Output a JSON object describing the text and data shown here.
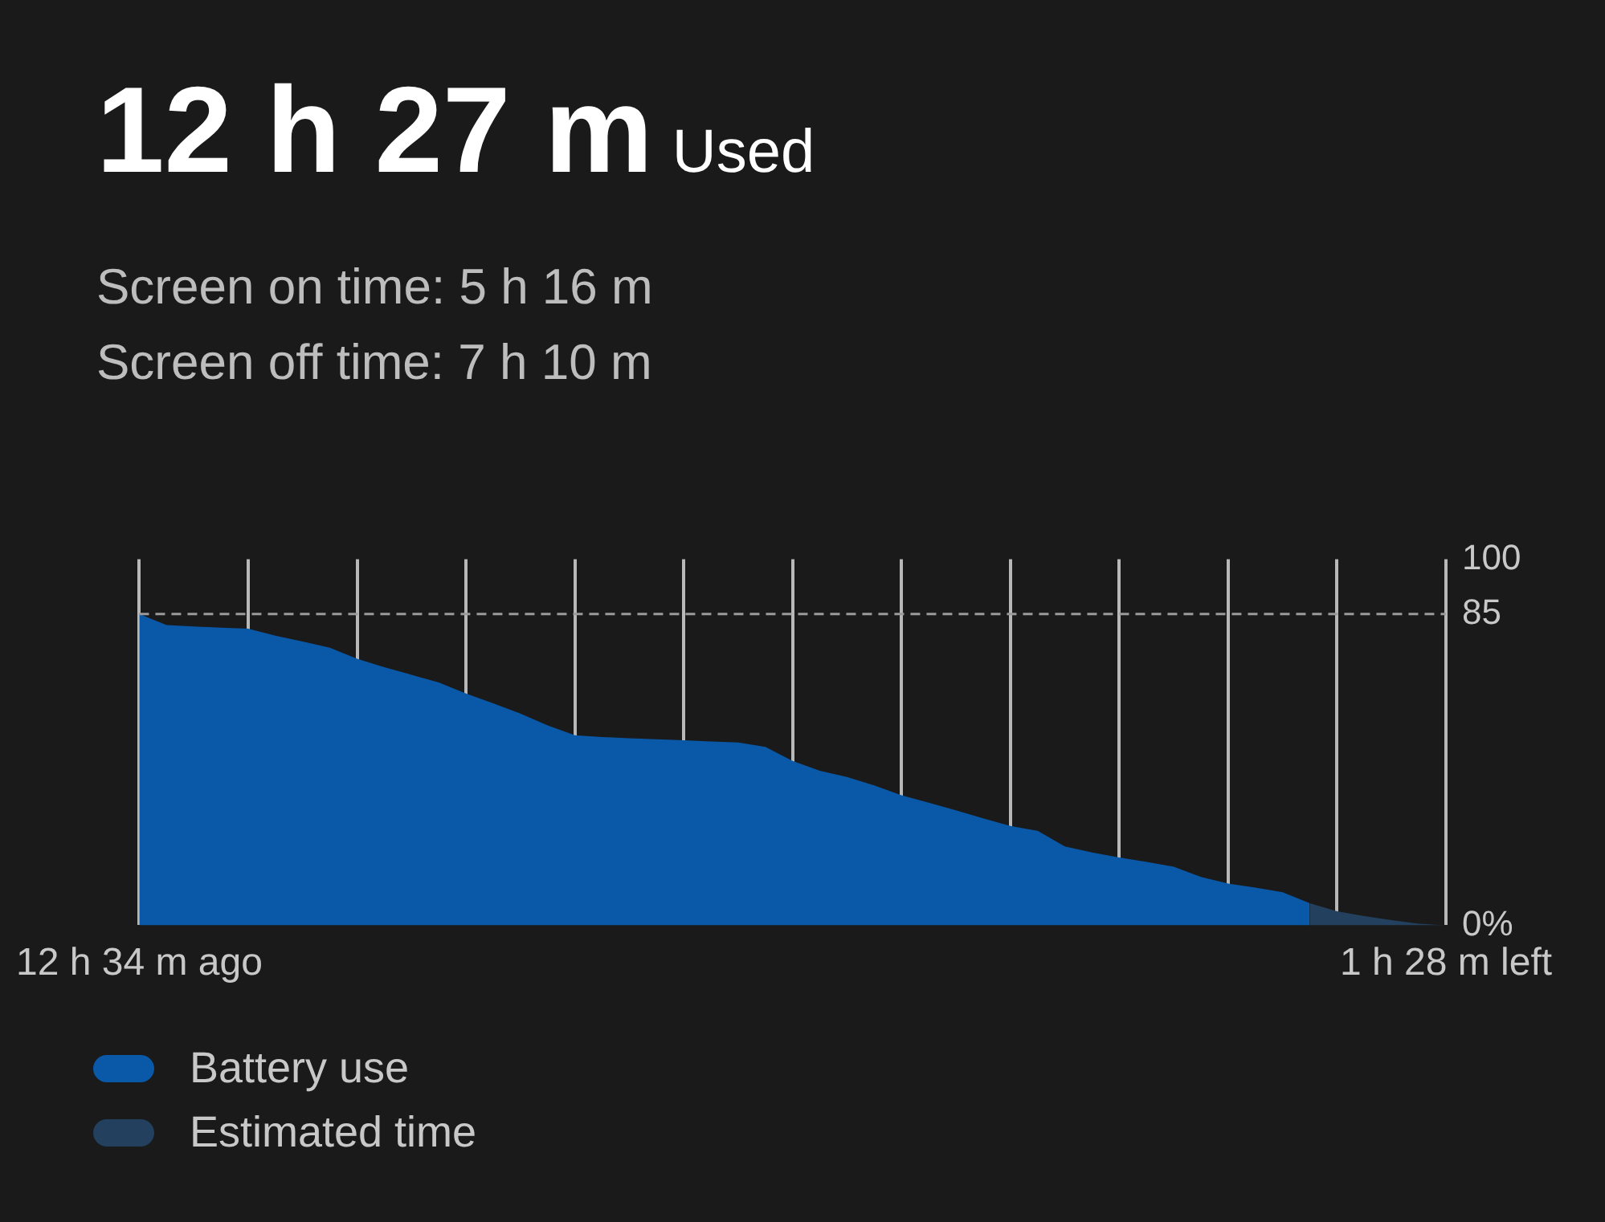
{
  "chart_data": {
    "type": "area",
    "title": "12 h 27 m",
    "subtitle": "Used",
    "annotations": [
      "Screen on time: 5 h 16 m",
      "Screen off time: 7 h 10 m"
    ],
    "categories": [
      "12 h 34 m ago",
      null,
      null,
      null,
      null,
      null,
      null,
      null,
      null,
      null,
      null,
      null,
      null,
      null,
      null,
      null,
      null,
      null,
      null,
      null,
      null,
      null,
      null,
      null,
      null,
      null,
      null,
      null,
      null,
      null,
      null,
      null,
      null,
      null,
      null,
      null,
      null,
      null,
      null,
      null,
      null,
      null,
      null,
      null,
      null,
      null,
      null,
      null,
      "1 h 28 m left"
    ],
    "ylim": [
      0,
      100
    ],
    "yticks": [
      {
        "value": 0,
        "label": "0%"
      },
      85,
      100
    ],
    "grid": "x",
    "legend": "bottom",
    "ref_lines": [
      {
        "axis": "y",
        "value": 85,
        "color": "#9a9a9a",
        "line_style": "dashed"
      }
    ],
    "series": [
      {
        "name": "Battery use",
        "color": "#0a58a8",
        "values": [
          85,
          82,
          81.6,
          81.3,
          81,
          79.1,
          77.5,
          75.8,
          72.8,
          70.5,
          68.4,
          66.3,
          63.3,
          60.6,
          57.8,
          54.6,
          51.9,
          51.4,
          51.1,
          50.8,
          50.5,
          50.2,
          49.9,
          48.7,
          44.9,
          42.2,
          40.5,
          38.2,
          35.5,
          33.5,
          31.4,
          29.2,
          27.1,
          25.8,
          21.5,
          19.9,
          18.5,
          17.3,
          16,
          13.2,
          11.4,
          10.3,
          9,
          6,
          null,
          null,
          null,
          null,
          null
        ]
      },
      {
        "name": "Estimated time",
        "color": "#23405f",
        "values": [
          null,
          null,
          null,
          null,
          null,
          null,
          null,
          null,
          null,
          null,
          null,
          null,
          null,
          null,
          null,
          null,
          null,
          null,
          null,
          null,
          null,
          null,
          null,
          null,
          null,
          null,
          null,
          null,
          null,
          null,
          null,
          null,
          null,
          null,
          null,
          null,
          null,
          null,
          null,
          null,
          null,
          null,
          null,
          6,
          3.8,
          2.5,
          1.4,
          0.4,
          0
        ]
      }
    ]
  }
}
